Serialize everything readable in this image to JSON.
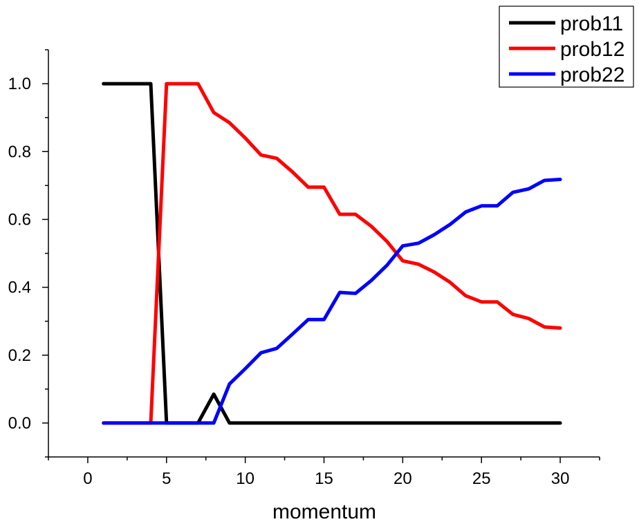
{
  "chart_data": {
    "type": "line",
    "title": "",
    "xlabel": "momentum",
    "ylabel": "",
    "xlim": [
      -2.5,
      32.5
    ],
    "ylim": [
      -0.1,
      1.1
    ],
    "x_ticks": [
      0,
      5,
      10,
      15,
      20,
      25,
      30
    ],
    "x_tick_labels": [
      "0",
      "5",
      "10",
      "15",
      "20",
      "25",
      "30"
    ],
    "y_ticks": [
      0.0,
      0.2,
      0.4,
      0.6,
      0.8,
      1.0
    ],
    "y_tick_labels": [
      "0.0",
      "0.2",
      "0.4",
      "0.6",
      "0.8",
      "1.0"
    ],
    "grid": false,
    "legend_position": "top-right",
    "x": [
      1,
      2,
      3,
      4,
      5,
      6,
      7,
      8,
      9,
      10,
      11,
      12,
      13,
      14,
      15,
      16,
      17,
      18,
      19,
      20,
      21,
      22,
      23,
      24,
      25,
      26,
      27,
      28,
      29,
      30
    ],
    "series": [
      {
        "name": "prob11",
        "color": "#000000",
        "values": [
          1.0,
          1.0,
          1.0,
          1.0,
          0.0,
          0.0,
          0.0,
          0.085,
          0.0,
          0.0,
          0.0,
          0.0,
          0.0,
          0.0,
          0.0,
          0.0,
          0.0,
          0.0,
          0.0,
          0.0,
          0.0,
          0.0,
          0.0,
          0.0,
          0.0,
          0.0,
          0.0,
          0.0,
          0.0,
          0.0
        ]
      },
      {
        "name": "prob12",
        "color": "#ff0000",
        "values": [
          0.0,
          0.0,
          0.0,
          0.0,
          1.0,
          1.0,
          1.0,
          0.915,
          0.885,
          0.84,
          0.79,
          0.78,
          0.74,
          0.695,
          0.695,
          0.615,
          0.615,
          0.58,
          0.535,
          0.478,
          0.468,
          0.445,
          0.415,
          0.375,
          0.357,
          0.357,
          0.32,
          0.308,
          0.283,
          0.28
        ]
      },
      {
        "name": "prob22",
        "color": "#0000ff",
        "values": [
          0.0,
          0.0,
          0.0,
          0.0,
          0.0,
          0.0,
          0.0,
          0.0,
          0.115,
          0.16,
          0.207,
          0.22,
          0.262,
          0.305,
          0.305,
          0.385,
          0.382,
          0.42,
          0.465,
          0.522,
          0.53,
          0.555,
          0.585,
          0.622,
          0.64,
          0.64,
          0.68,
          0.69,
          0.715,
          0.718
        ]
      }
    ]
  }
}
